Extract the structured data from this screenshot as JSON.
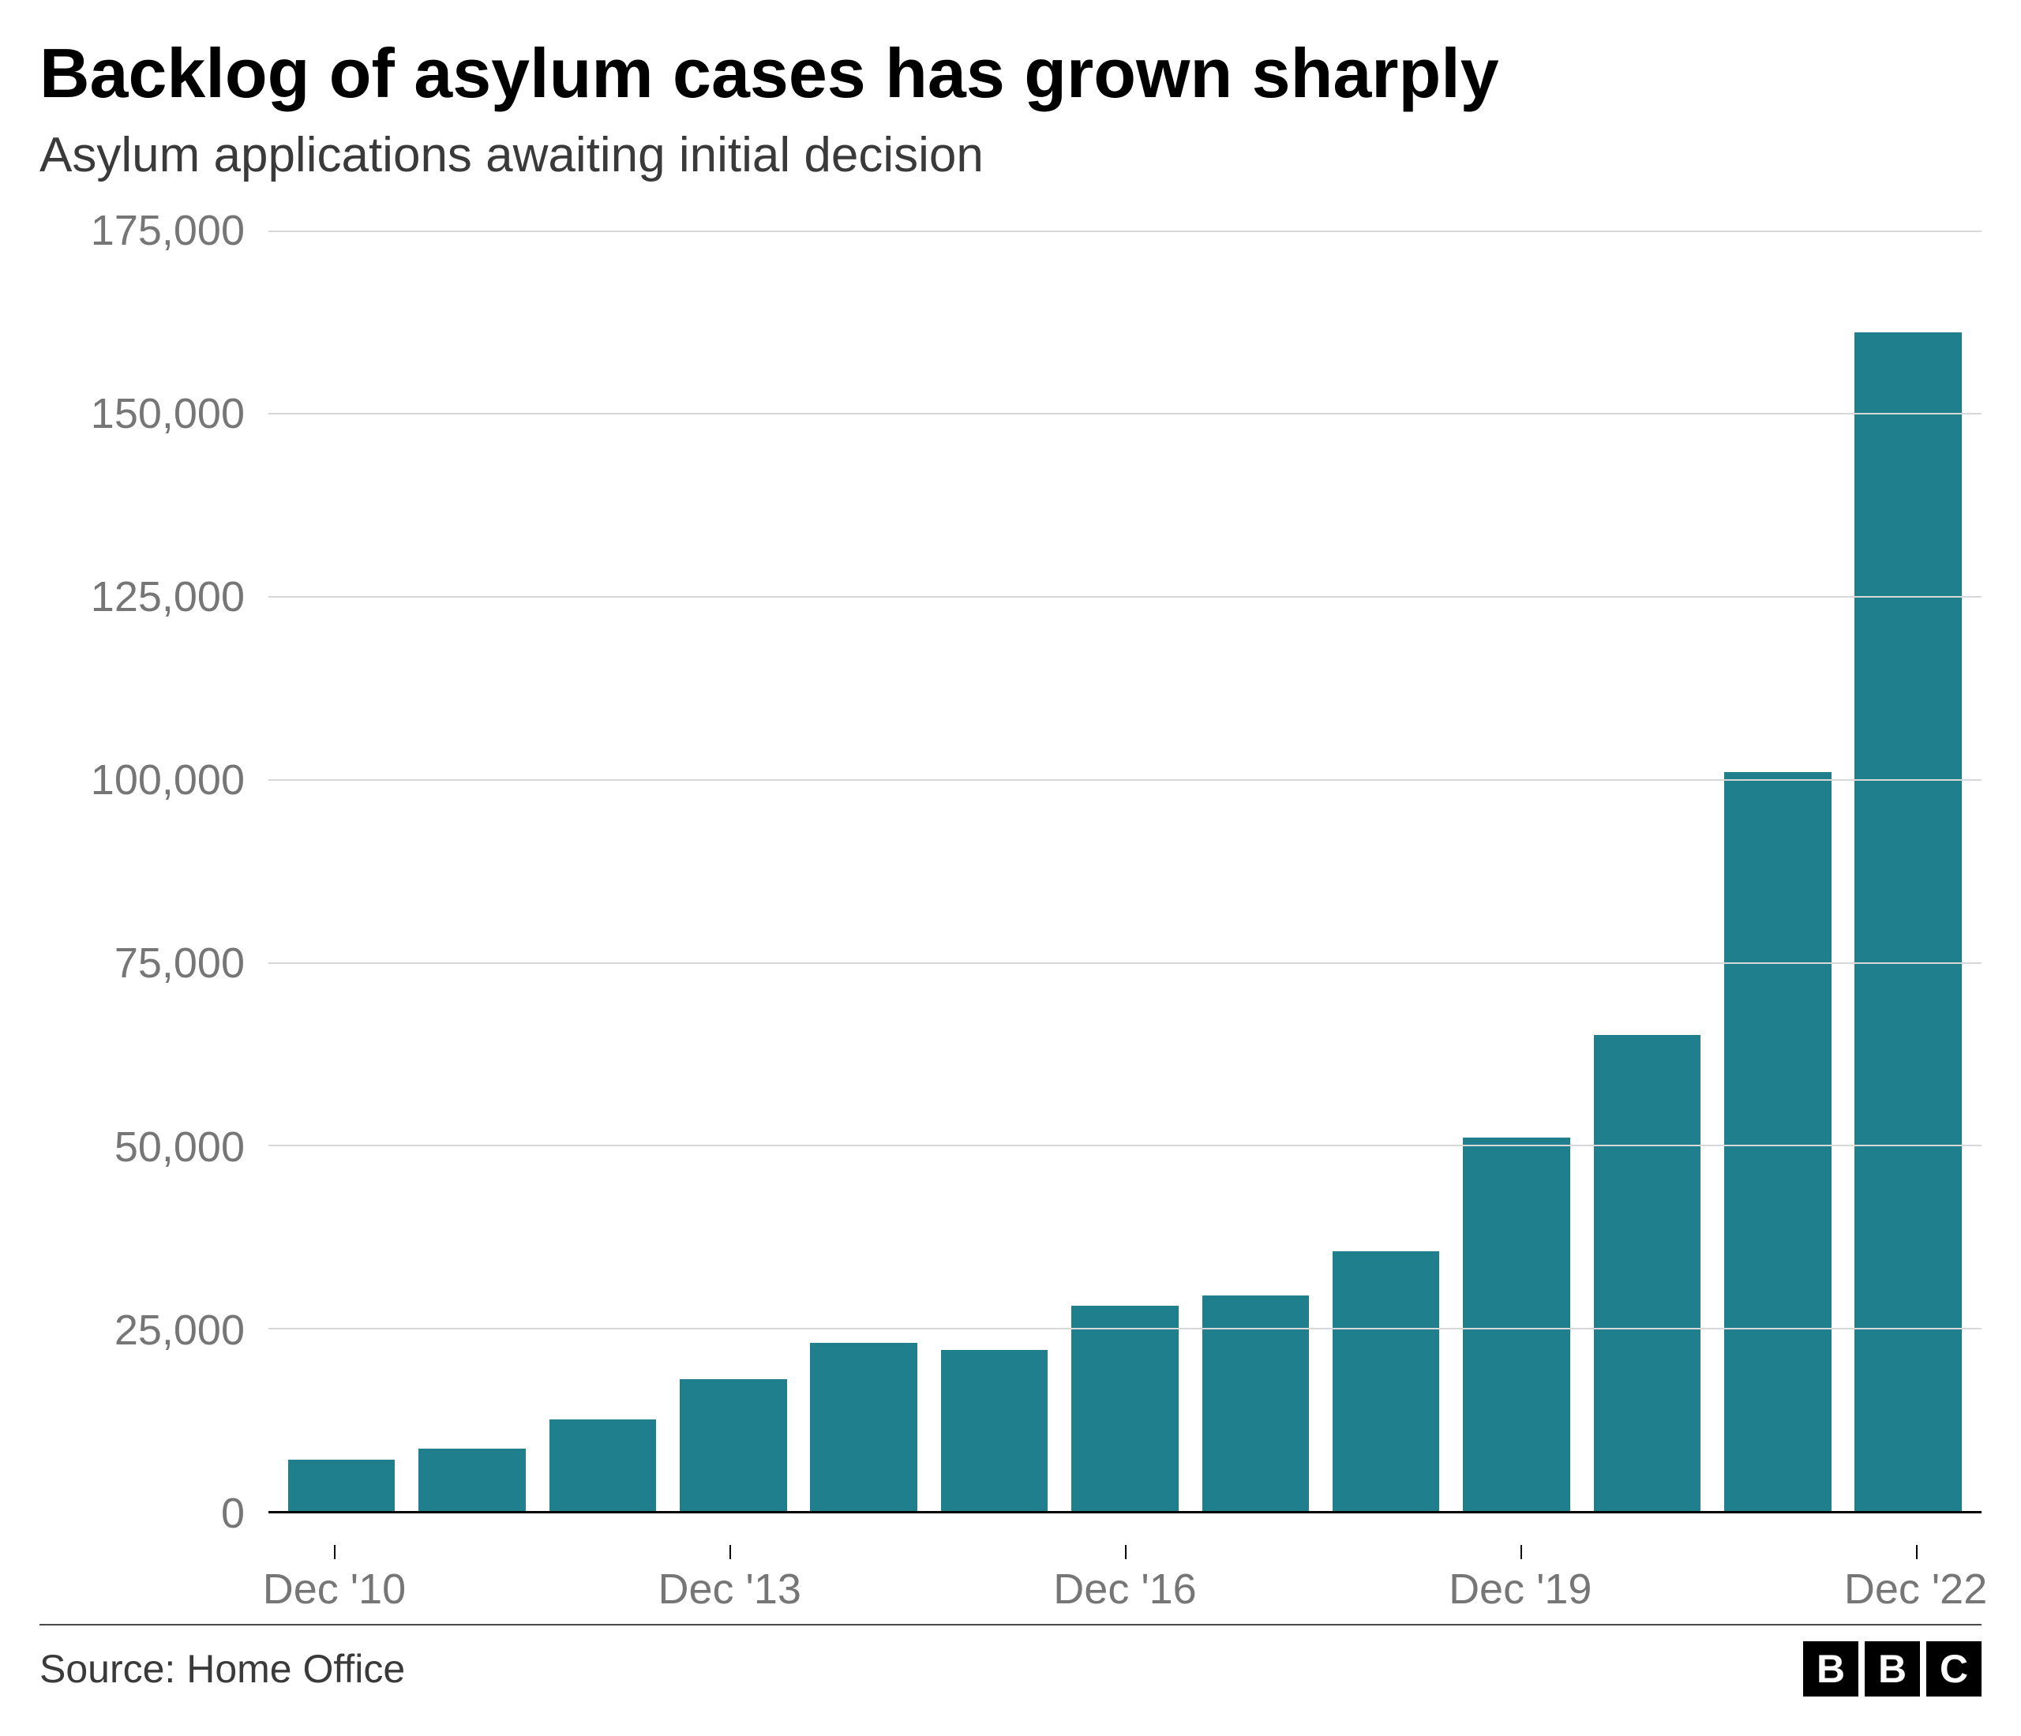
{
  "chart": {
    "type": "bar",
    "title": "Backlog of asylum cases has grown sharply",
    "subtitle": "Asylum applications awaiting initial decision",
    "title_fontsize": 88,
    "subtitle_fontsize": 62,
    "title_color": "#000000",
    "subtitle_color": "#3a3a3a",
    "background_color": "#ffffff",
    "bar_color": "#1f7f8c",
    "grid_color": "#d8d8d8",
    "axis_label_color": "#767676",
    "axis_fontsize": 54,
    "ylim": [
      0,
      175000
    ],
    "ytick_step": 25000,
    "ytick_labels": [
      "0",
      "25,000",
      "50,000",
      "75,000",
      "100,000",
      "125,000",
      "150,000",
      "175,000"
    ],
    "ytick_values": [
      0,
      25000,
      50000,
      75000,
      100000,
      125000,
      150000,
      175000
    ],
    "categories": [
      "Dec '10",
      "Dec '11",
      "Dec '12",
      "Dec '13",
      "Dec '14",
      "Dec '15",
      "Dec '16",
      "Dec '17",
      "Dec '18",
      "Dec '19",
      "Dec '20",
      "Dec '21",
      "Dec '22"
    ],
    "values": [
      7000,
      8500,
      12500,
      18000,
      23000,
      22000,
      28000,
      29500,
      35500,
      51000,
      65000,
      101000,
      161000
    ],
    "x_tick_labels": [
      "Dec '10",
      "Dec '13",
      "Dec '16",
      "Dec '19",
      "Dec '22"
    ],
    "x_tick_indices": [
      0,
      3,
      6,
      9,
      12
    ],
    "bar_width_pct": 6.3,
    "footer": {
      "source": "Source: Home Office",
      "logo_letters": [
        "B",
        "B",
        "C"
      ],
      "source_fontsize": 50,
      "logo_bg": "#000000",
      "logo_fg": "#ffffff"
    }
  }
}
